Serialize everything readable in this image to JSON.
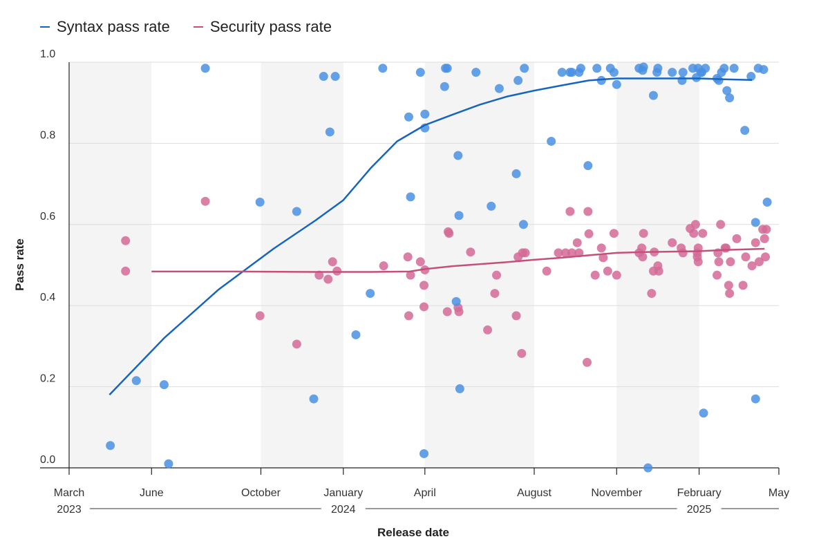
{
  "colors": {
    "syntax": "#1565c0",
    "syntax_point": "#4a90e2",
    "security": "#c2507a",
    "security_point": "#d46a96",
    "band": "#f4f4f4",
    "grid": "#dddddd",
    "axis": "#222222"
  },
  "legend": [
    {
      "name": "Syntax pass rate",
      "color": "#1565c0"
    },
    {
      "name": "Security pass rate",
      "color": "#c2507a"
    }
  ],
  "chart_data": {
    "type": "scatter",
    "xlabel": "Release date",
    "ylabel": "Pass rate",
    "ylim": [
      0,
      1
    ],
    "xlim": [
      "2023-03-01",
      "2025-05-01"
    ],
    "yticks": [
      0.0,
      0.2,
      0.4,
      0.6,
      0.8,
      1.0
    ],
    "ytick_labels": [
      "0.0",
      "0.2",
      "0.4",
      "0.6",
      "0.8",
      "1.0"
    ],
    "xticks": [
      {
        "date": "2023-03-01",
        "label": "March"
      },
      {
        "date": "2023-06-01",
        "label": "June"
      },
      {
        "date": "2023-10-01",
        "label": "October"
      },
      {
        "date": "2024-01-01",
        "label": "January"
      },
      {
        "date": "2024-04-01",
        "label": "April"
      },
      {
        "date": "2024-08-01",
        "label": "August"
      },
      {
        "date": "2024-11-01",
        "label": "November"
      },
      {
        "date": "2025-02-01",
        "label": "February"
      },
      {
        "date": "2025-05-01",
        "label": "May"
      }
    ],
    "years": [
      {
        "label": "2023",
        "date": "2023-03-01"
      },
      {
        "label": "2024",
        "date": "2024-01-01"
      },
      {
        "label": "2025",
        "date": "2025-02-01"
      }
    ],
    "bands": [
      [
        "2023-03-01",
        "2023-06-01"
      ],
      [
        "2023-10-01",
        "2024-01-01"
      ],
      [
        "2024-04-01",
        "2024-08-01"
      ],
      [
        "2024-11-01",
        "2025-02-01"
      ]
    ],
    "grid": true,
    "legend_position": "top-left",
    "series": [
      {
        "name": "Syntax pass rate",
        "trend": [
          [
            "2023-04-15",
            0.18
          ],
          [
            "2023-06-15",
            0.32
          ],
          [
            "2023-08-15",
            0.44
          ],
          [
            "2023-10-15",
            0.54
          ],
          [
            "2023-12-01",
            0.61
          ],
          [
            "2024-01-01",
            0.66
          ],
          [
            "2024-02-01",
            0.74
          ],
          [
            "2024-03-01",
            0.805
          ],
          [
            "2024-04-01",
            0.845
          ],
          [
            "2024-05-01",
            0.87
          ],
          [
            "2024-06-01",
            0.895
          ],
          [
            "2024-07-01",
            0.915
          ],
          [
            "2024-08-01",
            0.93
          ],
          [
            "2024-09-01",
            0.943
          ],
          [
            "2024-10-01",
            0.955
          ],
          [
            "2024-11-01",
            0.96
          ],
          [
            "2024-12-01",
            0.96
          ],
          [
            "2025-01-01",
            0.96
          ],
          [
            "2025-02-01",
            0.96
          ],
          [
            "2025-03-01",
            0.958
          ],
          [
            "2025-04-01",
            0.956
          ]
        ],
        "points": [
          [
            "2023-04-16",
            0.055
          ],
          [
            "2023-05-15",
            0.215
          ],
          [
            "2023-06-15",
            0.205
          ],
          [
            "2023-06-20",
            0.01
          ],
          [
            "2023-07-31",
            0.985
          ],
          [
            "2023-09-30",
            0.655
          ],
          [
            "2023-11-10",
            0.632
          ],
          [
            "2023-11-29",
            0.17
          ],
          [
            "2023-12-10",
            0.965
          ],
          [
            "2023-12-17",
            0.828
          ],
          [
            "2023-12-23",
            0.965
          ],
          [
            "2024-01-15",
            0.328
          ],
          [
            "2024-01-31",
            0.43
          ],
          [
            "2024-02-14",
            0.985
          ],
          [
            "2024-03-14",
            0.865
          ],
          [
            "2024-03-16",
            0.668
          ],
          [
            "2024-03-27",
            0.975
          ],
          [
            "2024-03-31",
            0.035
          ],
          [
            "2024-04-01",
            0.872
          ],
          [
            "2024-04-01",
            0.838
          ],
          [
            "2024-04-23",
            0.94
          ],
          [
            "2024-04-24",
            0.985
          ],
          [
            "2024-04-26",
            0.985
          ],
          [
            "2024-05-06",
            0.41
          ],
          [
            "2024-05-08",
            0.77
          ],
          [
            "2024-05-09",
            0.622
          ],
          [
            "2024-05-10",
            0.195
          ],
          [
            "2024-05-28",
            0.975
          ],
          [
            "2024-06-14",
            0.645
          ],
          [
            "2024-06-23",
            0.935
          ],
          [
            "2024-07-12",
            0.725
          ],
          [
            "2024-07-14",
            0.955
          ],
          [
            "2024-07-20",
            0.6
          ],
          [
            "2024-07-21",
            0.985
          ],
          [
            "2024-08-20",
            0.805
          ],
          [
            "2024-09-01",
            0.975
          ],
          [
            "2024-09-10",
            0.975
          ],
          [
            "2024-09-12",
            0.975
          ],
          [
            "2024-09-20",
            0.975
          ],
          [
            "2024-09-22",
            0.985
          ],
          [
            "2024-09-30",
            0.745
          ],
          [
            "2024-10-10",
            0.985
          ],
          [
            "2024-10-15",
            0.955
          ],
          [
            "2024-10-25",
            0.985
          ],
          [
            "2024-10-29",
            0.975
          ],
          [
            "2024-11-01",
            0.945
          ],
          [
            "2024-11-26",
            0.985
          ],
          [
            "2024-11-30",
            0.98
          ],
          [
            "2024-12-01",
            0.988
          ],
          [
            "2024-12-06",
            0.0
          ],
          [
            "2024-12-12",
            0.918
          ],
          [
            "2024-12-16",
            0.975
          ],
          [
            "2024-12-17",
            0.985
          ],
          [
            "2025-01-02",
            0.975
          ],
          [
            "2025-01-13",
            0.955
          ],
          [
            "2025-01-14",
            0.975
          ],
          [
            "2025-01-25",
            0.985
          ],
          [
            "2025-01-29",
            0.962
          ],
          [
            "2025-01-31",
            0.985
          ],
          [
            "2025-02-03",
            0.975
          ],
          [
            "2025-02-04",
            0.975
          ],
          [
            "2025-02-06",
            0.135
          ],
          [
            "2025-02-08",
            0.985
          ],
          [
            "2025-02-21",
            0.96
          ],
          [
            "2025-02-23",
            0.955
          ],
          [
            "2025-02-26",
            0.975
          ],
          [
            "2025-03-01",
            0.985
          ],
          [
            "2025-03-04",
            0.93
          ],
          [
            "2025-03-07",
            0.912
          ],
          [
            "2025-03-12",
            0.985
          ],
          [
            "2025-03-24",
            0.832
          ],
          [
            "2025-03-31",
            0.965
          ],
          [
            "2025-04-05",
            0.605
          ],
          [
            "2025-04-05",
            0.17
          ],
          [
            "2025-04-08",
            0.985
          ],
          [
            "2025-04-14",
            0.982
          ],
          [
            "2025-04-18",
            0.655
          ]
        ]
      },
      {
        "name": "Security pass rate",
        "trend": [
          [
            "2023-06-01",
            0.484
          ],
          [
            "2023-09-01",
            0.484
          ],
          [
            "2023-12-01",
            0.483
          ],
          [
            "2024-02-01",
            0.483
          ],
          [
            "2024-03-15",
            0.484
          ],
          [
            "2024-04-01",
            0.49
          ],
          [
            "2024-05-01",
            0.497
          ],
          [
            "2024-06-01",
            0.502
          ],
          [
            "2024-07-01",
            0.507
          ],
          [
            "2024-08-01",
            0.513
          ],
          [
            "2024-09-01",
            0.518
          ],
          [
            "2024-10-01",
            0.524
          ],
          [
            "2024-11-01",
            0.53
          ],
          [
            "2024-12-01",
            0.532
          ],
          [
            "2025-01-01",
            0.533
          ],
          [
            "2025-02-01",
            0.534
          ],
          [
            "2025-03-01",
            0.537
          ],
          [
            "2025-04-15",
            0.54
          ]
        ],
        "points": [
          [
            "2023-05-03",
            0.56
          ],
          [
            "2023-05-03",
            0.485
          ],
          [
            "2023-07-31",
            0.657
          ],
          [
            "2023-09-30",
            0.375
          ],
          [
            "2023-11-10",
            0.305
          ],
          [
            "2023-12-05",
            0.475
          ],
          [
            "2023-12-15",
            0.465
          ],
          [
            "2023-12-20",
            0.508
          ],
          [
            "2023-12-25",
            0.485
          ],
          [
            "2024-02-15",
            0.498
          ],
          [
            "2024-03-13",
            0.52
          ],
          [
            "2024-03-14",
            0.375
          ],
          [
            "2024-03-16",
            0.475
          ],
          [
            "2024-03-27",
            0.508
          ],
          [
            "2024-03-31",
            0.45
          ],
          [
            "2024-03-31",
            0.397
          ],
          [
            "2024-04-01",
            0.488
          ],
          [
            "2024-04-26",
            0.385
          ],
          [
            "2024-04-27",
            0.582
          ],
          [
            "2024-04-28",
            0.578
          ],
          [
            "2024-05-08",
            0.395
          ],
          [
            "2024-05-09",
            0.385
          ],
          [
            "2024-05-22",
            0.532
          ],
          [
            "2024-06-10",
            0.34
          ],
          [
            "2024-06-18",
            0.43
          ],
          [
            "2024-06-20",
            0.475
          ],
          [
            "2024-07-12",
            0.375
          ],
          [
            "2024-07-14",
            0.52
          ],
          [
            "2024-07-18",
            0.282
          ],
          [
            "2024-07-19",
            0.53
          ],
          [
            "2024-07-22",
            0.53
          ],
          [
            "2024-08-15",
            0.485
          ],
          [
            "2024-08-28",
            0.53
          ],
          [
            "2024-09-05",
            0.53
          ],
          [
            "2024-09-10",
            0.632
          ],
          [
            "2024-09-12",
            0.53
          ],
          [
            "2024-09-18",
            0.555
          ],
          [
            "2024-09-20",
            0.53
          ],
          [
            "2024-09-29",
            0.26
          ],
          [
            "2024-09-30",
            0.632
          ],
          [
            "2024-10-01",
            0.577
          ],
          [
            "2024-10-08",
            0.475
          ],
          [
            "2024-10-15",
            0.542
          ],
          [
            "2024-10-17",
            0.518
          ],
          [
            "2024-10-22",
            0.485
          ],
          [
            "2024-10-29",
            0.578
          ],
          [
            "2024-11-01",
            0.475
          ],
          [
            "2024-11-26",
            0.53
          ],
          [
            "2024-11-29",
            0.542
          ],
          [
            "2024-11-30",
            0.52
          ],
          [
            "2024-12-01",
            0.578
          ],
          [
            "2024-12-10",
            0.43
          ],
          [
            "2024-12-12",
            0.485
          ],
          [
            "2024-12-13",
            0.532
          ],
          [
            "2024-12-17",
            0.498
          ],
          [
            "2024-12-18",
            0.485
          ],
          [
            "2025-01-02",
            0.555
          ],
          [
            "2025-01-12",
            0.542
          ],
          [
            "2025-01-14",
            0.53
          ],
          [
            "2025-01-22",
            0.59
          ],
          [
            "2025-01-26",
            0.578
          ],
          [
            "2025-01-28",
            0.6
          ],
          [
            "2025-01-30",
            0.53
          ],
          [
            "2025-01-30",
            0.52
          ],
          [
            "2025-01-31",
            0.508
          ],
          [
            "2025-01-31",
            0.542
          ],
          [
            "2025-02-05",
            0.578
          ],
          [
            "2025-02-21",
            0.475
          ],
          [
            "2025-02-22",
            0.53
          ],
          [
            "2025-02-23",
            0.508
          ],
          [
            "2025-02-25",
            0.6
          ],
          [
            "2025-03-02",
            0.542
          ],
          [
            "2025-03-03",
            0.542
          ],
          [
            "2025-03-06",
            0.45
          ],
          [
            "2025-03-07",
            0.43
          ],
          [
            "2025-03-08",
            0.508
          ],
          [
            "2025-03-15",
            0.565
          ],
          [
            "2025-03-22",
            0.45
          ],
          [
            "2025-03-25",
            0.52
          ],
          [
            "2025-04-01",
            0.498
          ],
          [
            "2025-04-05",
            0.555
          ],
          [
            "2025-04-09",
            0.508
          ],
          [
            "2025-04-13",
            0.588
          ],
          [
            "2025-04-15",
            0.565
          ],
          [
            "2025-04-16",
            0.52
          ],
          [
            "2025-04-17",
            0.588
          ]
        ]
      }
    ]
  }
}
